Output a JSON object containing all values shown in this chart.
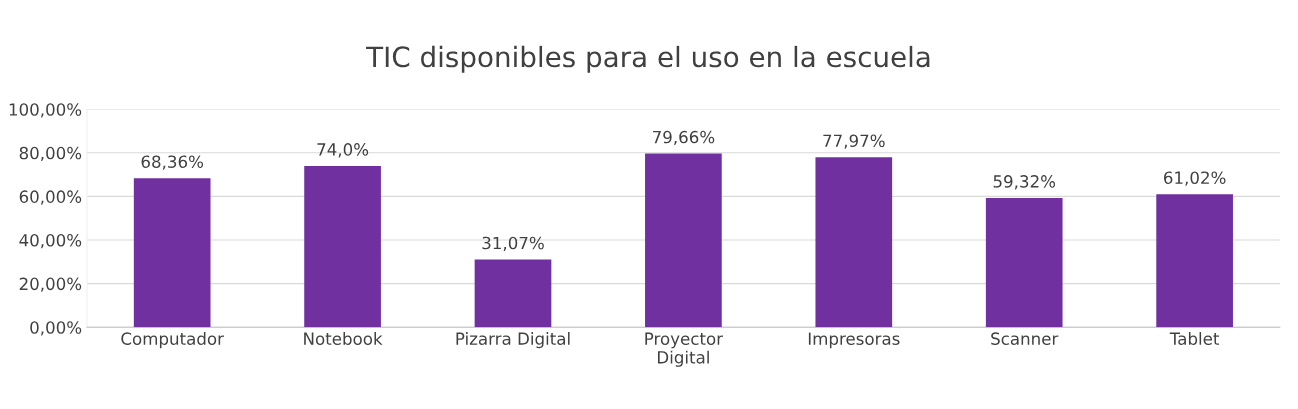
{
  "chart_data": {
    "type": "bar",
    "title": "TIC disponibles para el uso en la escuela",
    "categories": [
      "Computador",
      "Notebook",
      "Pizarra Digital",
      "Proyector\nDigital",
      "Impresoras",
      "Scanner",
      "Tablet"
    ],
    "values": [
      68.36,
      74.0,
      31.07,
      79.66,
      77.97,
      59.32,
      61.02
    ],
    "value_labels": [
      "68,36%",
      "74,0%",
      "31,07%",
      "79,66%",
      "77,97%",
      "59,32%",
      "61,02%"
    ],
    "color": "#7030a0",
    "ylim": [
      0,
      100
    ],
    "yticks": [
      {
        "value": 0,
        "label": "0,00%"
      },
      {
        "value": 20,
        "label": "20,00%"
      },
      {
        "value": 40,
        "label": "40,00%"
      },
      {
        "value": 60,
        "label": "60,00%"
      },
      {
        "value": 80,
        "label": "80,00%"
      },
      {
        "value": 100,
        "label": "100,00%"
      }
    ],
    "grid": "y",
    "legend": false
  }
}
